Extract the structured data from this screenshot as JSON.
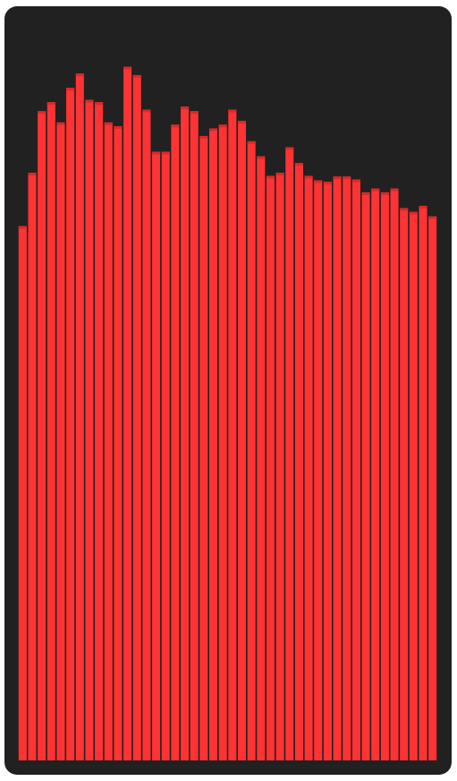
{
  "panel": {
    "background": "#212121"
  },
  "chart_data": {
    "type": "bar",
    "title": "",
    "xlabel": "",
    "ylabel": "",
    "ylim": [
      0,
      100
    ],
    "grid": false,
    "legend": "none",
    "bar_color": "#ff3333",
    "bar_cap_color": "#d92a2a",
    "values": [
      71.1,
      78.2,
      86.4,
      87.6,
      84.9,
      89.5,
      91.4,
      87.9,
      87.6,
      84.9,
      84.4,
      92.3,
      91.2,
      86.6,
      81.0,
      81.0,
      84.6,
      87.0,
      86.4,
      83.1,
      84.1,
      84.6,
      86.6,
      85.1,
      82.4,
      80.4,
      77.8,
      78.2,
      81.6,
      79.5,
      77.8,
      77.2,
      77.0,
      77.7,
      77.7,
      77.3,
      75.6,
      76.1,
      75.6,
      76.1,
      73.5,
      73.0,
      73.8,
      72.4
    ]
  }
}
